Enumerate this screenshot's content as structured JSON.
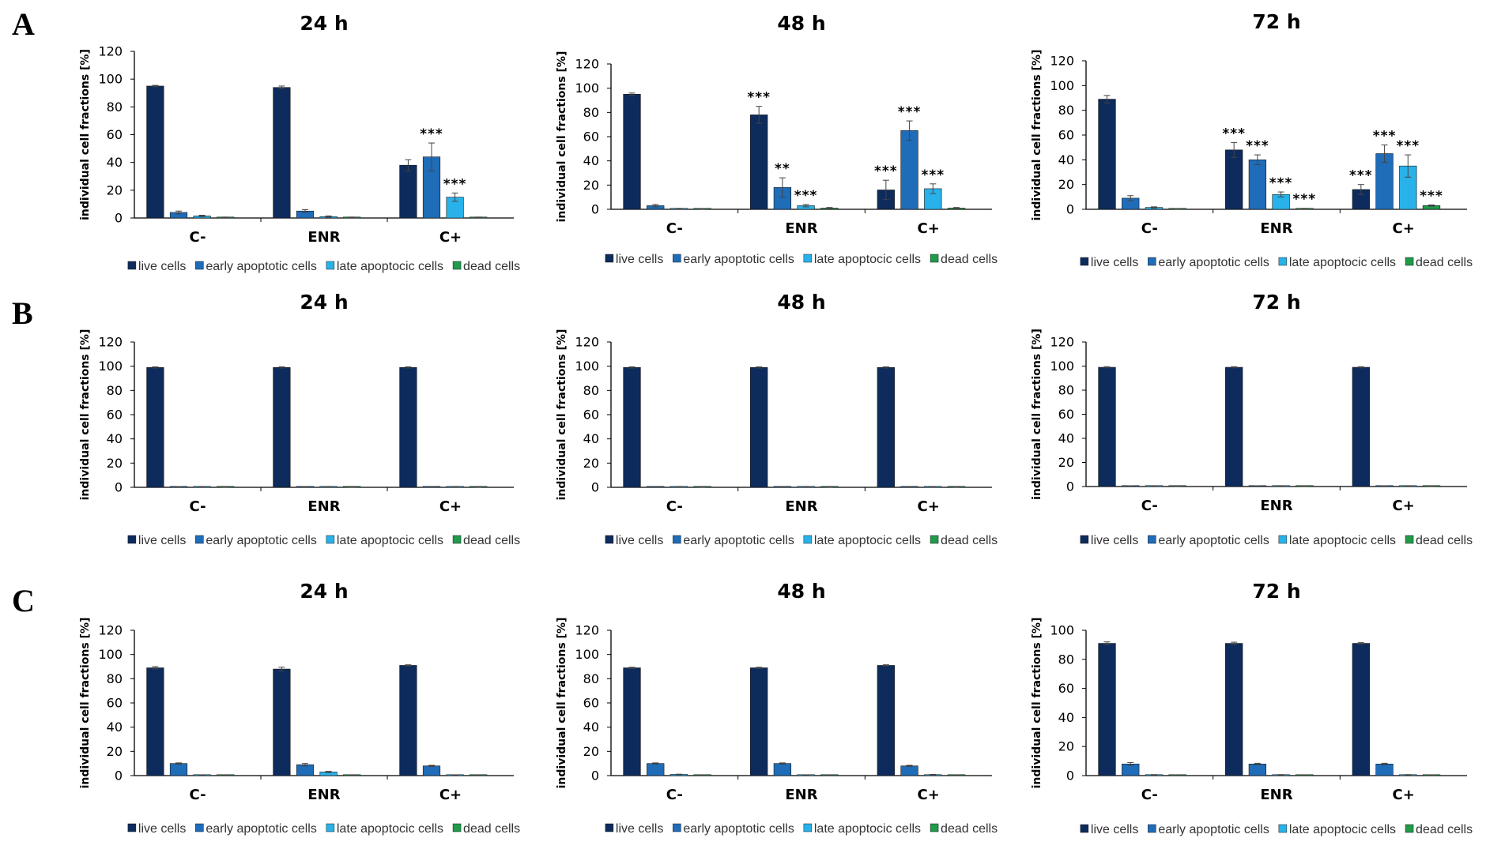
{
  "colors": {
    "series": [
      "#0d2b5c",
      "#1f6cb8",
      "#29b2ea",
      "#1f9b49"
    ],
    "axis": "#000000",
    "text": "#000000"
  },
  "panels": [
    {
      "letter": "A"
    },
    {
      "letter": "B"
    },
    {
      "letter": "C"
    }
  ],
  "chart_data": [
    {
      "type": "bar",
      "panel": "A",
      "title": "24 h",
      "xlabel": "",
      "ylabel": "individual cell fractions [%]",
      "ylim": [
        0,
        120
      ],
      "yticks": [
        0,
        20,
        40,
        60,
        80,
        100,
        120
      ],
      "categories": [
        "C-",
        "ENR",
        "C+"
      ],
      "series": [
        {
          "name": "live cells",
          "values": [
            95,
            94,
            38
          ],
          "errors": [
            0.5,
            1,
            4
          ],
          "significance": [
            "",
            "",
            ""
          ]
        },
        {
          "name": "early apoptotic cells",
          "values": [
            4,
            5,
            44
          ],
          "errors": [
            1,
            1,
            10
          ],
          "significance": [
            "",
            "",
            "***"
          ]
        },
        {
          "name": "late apoptocic cells",
          "values": [
            1.5,
            1,
            15
          ],
          "errors": [
            0.5,
            0.5,
            3
          ],
          "significance": [
            "",
            "",
            "***"
          ]
        },
        {
          "name": "dead cells",
          "values": [
            0.5,
            0.5,
            0.5
          ],
          "errors": [
            0.2,
            0.2,
            0.2
          ],
          "significance": [
            "",
            "",
            ""
          ]
        }
      ]
    },
    {
      "type": "bar",
      "panel": "A",
      "title": "48 h",
      "xlabel": "",
      "ylabel": "individual cell fractions [%]",
      "ylim": [
        0,
        120
      ],
      "yticks": [
        0,
        20,
        40,
        60,
        80,
        100,
        120
      ],
      "categories": [
        "C-",
        "ENR",
        "C+"
      ],
      "series": [
        {
          "name": "live cells",
          "values": [
            95,
            78,
            16
          ],
          "errors": [
            1,
            7,
            8
          ],
          "significance": [
            "",
            "***",
            "***"
          ]
        },
        {
          "name": "early apoptotic cells",
          "values": [
            3,
            18,
            65
          ],
          "errors": [
            1,
            8,
            8
          ],
          "significance": [
            "",
            "**",
            "***"
          ]
        },
        {
          "name": "late apoptocic cells",
          "values": [
            0.5,
            3,
            17
          ],
          "errors": [
            0.3,
            1,
            4
          ],
          "significance": [
            "",
            "***",
            "***"
          ]
        },
        {
          "name": "dead cells",
          "values": [
            0.3,
            1,
            1
          ],
          "errors": [
            0.2,
            0.5,
            0.5
          ],
          "significance": [
            "",
            "",
            ""
          ]
        }
      ]
    },
    {
      "type": "bar",
      "panel": "A",
      "title": "72 h",
      "xlabel": "",
      "ylabel": "individual cell fractions [%]",
      "ylim": [
        0,
        120
      ],
      "yticks": [
        0,
        20,
        40,
        60,
        80,
        100,
        120
      ],
      "categories": [
        "C-",
        "ENR",
        "C+"
      ],
      "series": [
        {
          "name": "live cells",
          "values": [
            89,
            48,
            16
          ],
          "errors": [
            3,
            6,
            4
          ],
          "significance": [
            "",
            "***",
            "***"
          ]
        },
        {
          "name": "early apoptotic cells",
          "values": [
            9,
            40,
            45
          ],
          "errors": [
            2,
            4,
            7
          ],
          "significance": [
            "",
            "***",
            "***"
          ]
        },
        {
          "name": "late apoptocic cells",
          "values": [
            1.5,
            12,
            35
          ],
          "errors": [
            0.5,
            2,
            9
          ],
          "significance": [
            "",
            "***",
            "***"
          ]
        },
        {
          "name": "dead cells",
          "values": [
            0.3,
            0.5,
            3
          ],
          "errors": [
            0.2,
            0.3,
            0.5
          ],
          "significance": [
            "",
            "***",
            "***"
          ]
        }
      ]
    },
    {
      "type": "bar",
      "panel": "B",
      "title": "24 h",
      "xlabel": "",
      "ylabel": "individual cell fractions [%]",
      "ylim": [
        0,
        120
      ],
      "yticks": [
        0,
        20,
        40,
        60,
        80,
        100,
        120
      ],
      "categories": [
        "C-",
        "ENR",
        "C+"
      ],
      "series": [
        {
          "name": "live cells",
          "values": [
            99,
            99,
            99
          ],
          "errors": [
            0.5,
            0.5,
            0.5
          ],
          "significance": [
            "",
            "",
            ""
          ]
        },
        {
          "name": "early apoptotic cells",
          "values": [
            0.5,
            0.4,
            0.6
          ],
          "errors": [
            0.1,
            0.1,
            0.1
          ],
          "significance": [
            "",
            "",
            ""
          ]
        },
        {
          "name": "late apoptocic cells",
          "values": [
            0.3,
            0.3,
            0.3
          ],
          "errors": [
            0.1,
            0.1,
            0.1
          ],
          "significance": [
            "",
            "",
            ""
          ]
        },
        {
          "name": "dead cells",
          "values": [
            0.2,
            0.2,
            0.2
          ],
          "errors": [
            0.1,
            0.1,
            0.1
          ],
          "significance": [
            "",
            "",
            ""
          ]
        }
      ]
    },
    {
      "type": "bar",
      "panel": "B",
      "title": "48 h",
      "xlabel": "",
      "ylabel": "individual cell fractions [%]",
      "ylim": [
        0,
        120
      ],
      "yticks": [
        0,
        20,
        40,
        60,
        80,
        100,
        120
      ],
      "categories": [
        "C-",
        "ENR",
        "C+"
      ],
      "series": [
        {
          "name": "live cells",
          "values": [
            99,
            99,
            99
          ],
          "errors": [
            0.5,
            0.5,
            0.5
          ],
          "significance": [
            "",
            "",
            ""
          ]
        },
        {
          "name": "early apoptotic cells",
          "values": [
            0.6,
            0.6,
            0.6
          ],
          "errors": [
            0.1,
            0.1,
            0.1
          ],
          "significance": [
            "",
            "",
            ""
          ]
        },
        {
          "name": "late apoptocic cells",
          "values": [
            0.3,
            0.3,
            0.3
          ],
          "errors": [
            0.1,
            0.1,
            0.1
          ],
          "significance": [
            "",
            "",
            ""
          ]
        },
        {
          "name": "dead cells",
          "values": [
            0.2,
            0.2,
            0.2
          ],
          "errors": [
            0.1,
            0.1,
            0.1
          ],
          "significance": [
            "",
            "",
            ""
          ]
        }
      ]
    },
    {
      "type": "bar",
      "panel": "B",
      "title": "72 h",
      "xlabel": "",
      "ylabel": "individual cell fractions [%]",
      "ylim": [
        0,
        120
      ],
      "yticks": [
        0,
        20,
        40,
        60,
        80,
        100,
        120
      ],
      "categories": [
        "C-",
        "ENR",
        "C+"
      ],
      "series": [
        {
          "name": "live cells",
          "values": [
            99,
            99,
            99
          ],
          "errors": [
            0.5,
            0.5,
            0.5
          ],
          "significance": [
            "",
            "",
            ""
          ]
        },
        {
          "name": "early apoptotic cells",
          "values": [
            0.5,
            0.5,
            0.5
          ],
          "errors": [
            0.1,
            0.1,
            0.1
          ],
          "significance": [
            "",
            "",
            ""
          ]
        },
        {
          "name": "late apoptocic cells",
          "values": [
            0.3,
            0.3,
            0.3
          ],
          "errors": [
            0.1,
            0.1,
            0.1
          ],
          "significance": [
            "",
            "",
            ""
          ]
        },
        {
          "name": "dead cells",
          "values": [
            0.2,
            0.2,
            0.2
          ],
          "errors": [
            0.1,
            0.1,
            0.1
          ],
          "significance": [
            "",
            "",
            ""
          ]
        }
      ]
    },
    {
      "type": "bar",
      "panel": "C",
      "title": "24 h",
      "xlabel": "",
      "ylabel": "individual cell fractions [%]",
      "ylim": [
        0,
        120
      ],
      "yticks": [
        0,
        20,
        40,
        60,
        80,
        100,
        120
      ],
      "categories": [
        "C-",
        "ENR",
        "C+"
      ],
      "series": [
        {
          "name": "live cells",
          "values": [
            89,
            88,
            91
          ],
          "errors": [
            1,
            1.5,
            0.5
          ],
          "significance": [
            "",
            "",
            ""
          ]
        },
        {
          "name": "early apoptotic cells",
          "values": [
            10,
            9,
            8
          ],
          "errors": [
            0.5,
            1,
            0.5
          ],
          "significance": [
            "",
            "",
            ""
          ]
        },
        {
          "name": "late apoptocic cells",
          "values": [
            0.5,
            3,
            0.5
          ],
          "errors": [
            0.2,
            0.5,
            0.2
          ],
          "significance": [
            "",
            "",
            ""
          ]
        },
        {
          "name": "dead cells",
          "values": [
            0.5,
            0.5,
            0.3
          ],
          "errors": [
            0.2,
            0.2,
            0.1
          ],
          "significance": [
            "",
            "",
            ""
          ]
        }
      ]
    },
    {
      "type": "bar",
      "panel": "C",
      "title": "48 h",
      "xlabel": "",
      "ylabel": "individual cell fractions [%]",
      "ylim": [
        0,
        120
      ],
      "yticks": [
        0,
        20,
        40,
        60,
        80,
        100,
        120
      ],
      "categories": [
        "C-",
        "ENR",
        "C+"
      ],
      "series": [
        {
          "name": "live cells",
          "values": [
            89,
            89,
            91
          ],
          "errors": [
            0.5,
            0.5,
            0.5
          ],
          "significance": [
            "",
            "",
            ""
          ]
        },
        {
          "name": "early apoptotic cells",
          "values": [
            10,
            10,
            8
          ],
          "errors": [
            0.5,
            0.5,
            0.5
          ],
          "significance": [
            "",
            "",
            ""
          ]
        },
        {
          "name": "late apoptocic cells",
          "values": [
            1,
            0.5,
            0.8
          ],
          "errors": [
            0.2,
            0.2,
            0.2
          ],
          "significance": [
            "",
            "",
            ""
          ]
        },
        {
          "name": "dead cells",
          "values": [
            0.3,
            0.3,
            0.3
          ],
          "errors": [
            0.1,
            0.1,
            0.1
          ],
          "significance": [
            "",
            "",
            ""
          ]
        }
      ]
    },
    {
      "type": "bar",
      "panel": "C",
      "title": "72 h",
      "xlabel": "",
      "ylabel": "individual cell fractions [%]",
      "ylim": [
        0,
        100
      ],
      "yticks": [
        0,
        20,
        40,
        60,
        80,
        100
      ],
      "categories": [
        "C-",
        "ENR",
        "C+"
      ],
      "series": [
        {
          "name": "live cells",
          "values": [
            91,
            91,
            91
          ],
          "errors": [
            1,
            0.8,
            0.5
          ],
          "significance": [
            "",
            "",
            ""
          ]
        },
        {
          "name": "early apoptotic cells",
          "values": [
            8,
            8,
            8
          ],
          "errors": [
            1,
            0.5,
            0.5
          ],
          "significance": [
            "",
            "",
            ""
          ]
        },
        {
          "name": "late apoptocic cells",
          "values": [
            0.5,
            0.5,
            0.5
          ],
          "errors": [
            0.2,
            0.2,
            0.2
          ],
          "significance": [
            "",
            "",
            ""
          ]
        },
        {
          "name": "dead cells",
          "values": [
            0.3,
            0.3,
            0.3
          ],
          "errors": [
            0.1,
            0.1,
            0.1
          ],
          "significance": [
            "",
            "",
            ""
          ]
        }
      ]
    }
  ]
}
